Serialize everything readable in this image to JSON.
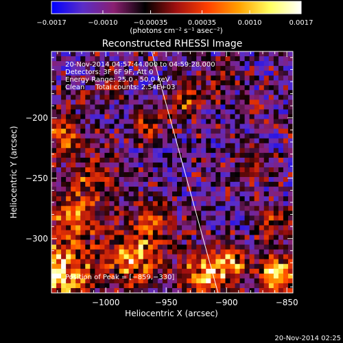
{
  "chart_data": {
    "type": "heatmap",
    "title": "Reconstructed RHESSI Image",
    "xlabel": "Heliocentric X (arcsec)",
    "ylabel": "Heliocentric Y (arcsec)",
    "xlim": [
      -1045,
      -845
    ],
    "ylim": [
      -345,
      -145
    ],
    "x_ticks": [
      -1000,
      -950,
      -900,
      -850
    ],
    "y_ticks": [
      -200,
      -250,
      -300
    ],
    "x_tick_labels": [
      "−1000",
      "−950",
      "−900",
      "−850"
    ],
    "y_tick_labels": [
      "−200",
      "−250",
      "−300"
    ],
    "colorbar": {
      "range": [
        -0.0017,
        0.0017
      ],
      "ticks": [
        -0.0017,
        -0.001,
        -0.00035,
        0.00035,
        0.001,
        0.0017
      ],
      "tick_labels": [
        "−0.0017",
        "−0.0010",
        "−0.00035",
        "0.00035",
        "0.0010",
        "0.0017"
      ],
      "units_label": "(photons cm⁻² s⁻¹ asec⁻²)",
      "colors": [
        "#0000ff",
        "#5a2dc8",
        "#8a1f70",
        "#000000",
        "#a01010",
        "#ff4000",
        "#ffa000",
        "#ffff60",
        "#ffffff"
      ]
    },
    "grid_cells": 50,
    "limb_line": [
      [
        -962,
        -145
      ],
      [
        -907,
        -345
      ]
    ],
    "annotations": [
      "20-Nov-2014 04:57:44.000 to 04:59:28.000",
      "Detectors: 3F 6F 9F, Att 0",
      "Energy Range: 25.0 - 50.0 keV",
      "Clean     Total counts: 2.54E+03"
    ],
    "peak_label": "Position of Peak = [−859,−330]",
    "hotspots": [
      {
        "x": -1038,
        "y": -330,
        "r": 28,
        "v": 1.0
      },
      {
        "x": -1025,
        "y": -280,
        "r": 22,
        "v": 0.7
      },
      {
        "x": -1035,
        "y": -215,
        "r": 18,
        "v": 0.6
      },
      {
        "x": -1010,
        "y": -250,
        "r": 16,
        "v": 0.55
      },
      {
        "x": -975,
        "y": -315,
        "r": 24,
        "v": 0.85
      },
      {
        "x": -960,
        "y": -285,
        "r": 14,
        "v": 0.5
      },
      {
        "x": -965,
        "y": -205,
        "r": 12,
        "v": 0.65
      },
      {
        "x": -935,
        "y": -185,
        "r": 14,
        "v": 0.55
      },
      {
        "x": -918,
        "y": -330,
        "r": 18,
        "v": 0.95
      },
      {
        "x": -895,
        "y": -320,
        "r": 14,
        "v": 0.75
      },
      {
        "x": -858,
        "y": -330,
        "r": 16,
        "v": 1.0
      },
      {
        "x": -862,
        "y": -290,
        "r": 12,
        "v": 0.6
      },
      {
        "x": -878,
        "y": -240,
        "r": 12,
        "v": 0.5
      },
      {
        "x": -905,
        "y": -165,
        "r": 10,
        "v": 0.4
      },
      {
        "x": -995,
        "y": -175,
        "r": 10,
        "v": 0.45
      }
    ]
  },
  "footer": {
    "timestamp": "20-Nov-2014 02:25"
  }
}
